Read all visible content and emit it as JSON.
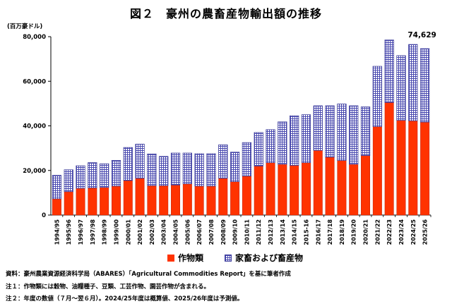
{
  "header": {
    "title": "図２　豪州の農畜産物輸出額の推移",
    "unit": "(百万豪ドル)"
  },
  "colors": {
    "crops": "#ff3300",
    "crops_edge": "#c02000",
    "livestock_fill": "#ffffff",
    "livestock_grid": "#4a4ab0",
    "livestock_edge": "#3b3b9a"
  },
  "legend": {
    "crops": "作物類",
    "livestock": "家畜および畜産物"
  },
  "notes": {
    "source": "資料：豪州農業資源経済科学局（ABARES）「Agricultural Commodities Report」を基に筆者作成",
    "note1": "注１：作物類には穀物、油糧種子、豆類、工芸作物、園芸作物が含まれる。",
    "note2": "注２：年度の数値（７月～翌６月）。2024/25年度は概算値、2025/26年度は予測値。"
  },
  "chart_data": {
    "type": "bar",
    "stacked": true,
    "categories": [
      "1994/95",
      "1995/96",
      "1996/97",
      "1997/98",
      "1998/99",
      "1999/00",
      "2000/01",
      "2001/02",
      "2002/03",
      "2003/04",
      "2004/05",
      "2005/06",
      "2006/07",
      "2007/08",
      "2008/09",
      "2009/10",
      "2010/11",
      "2011/12",
      "2012/13",
      "2013/14",
      "2014/15",
      "2015-16",
      "2016/17",
      "2017/18",
      "2018/19",
      "2019/20",
      "2020/21",
      "2021/22",
      "2022/23",
      "2023/24",
      "2024/25",
      "2025/26"
    ],
    "series": [
      {
        "name": "作物類",
        "values": [
          7300,
          10500,
          12000,
          12200,
          12400,
          13000,
          15500,
          16500,
          13200,
          13200,
          13500,
          14000,
          13000,
          13000,
          16500,
          15000,
          17500,
          22000,
          23500,
          22800,
          22300,
          23500,
          29000,
          26000,
          24500,
          22800,
          26700,
          39700,
          50500,
          42500,
          42300,
          41700
        ]
      },
      {
        "name": "家畜および畜産物",
        "values": [
          10500,
          9800,
          10100,
          11300,
          10600,
          11500,
          14800,
          15300,
          14200,
          13100,
          14300,
          13800,
          14500,
          14500,
          15000,
          13200,
          15000,
          15000,
          14800,
          19000,
          22200,
          21500,
          20000,
          23000,
          25300,
          26200,
          21800,
          27000,
          28000,
          29000,
          34200,
          32929
        ]
      }
    ],
    "totals_label": {
      "category": "2025/26",
      "text": "74,629"
    },
    "ylim": [
      0,
      80000
    ],
    "yticks": [
      0,
      20000,
      40000,
      60000,
      80000
    ],
    "ytick_labels": [
      "0",
      "20,000",
      "40,000",
      "60,000",
      "80,000"
    ],
    "ylabel": "(百万豪ドル)",
    "xlabel": "",
    "grid": false,
    "legend_position": "bottom"
  }
}
